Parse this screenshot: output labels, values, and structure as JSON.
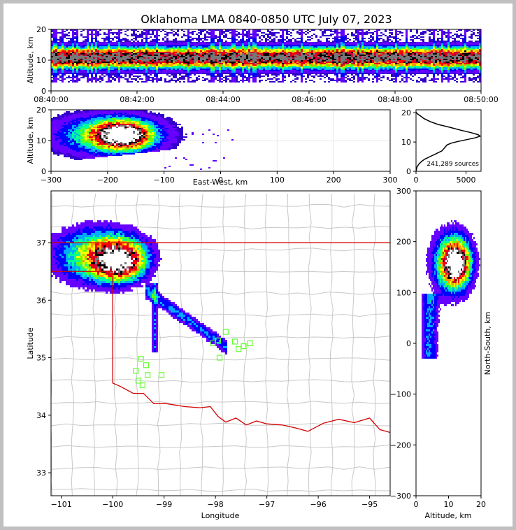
{
  "title": "Oklahoma LMA 0840-0850 UTC July 07, 2023",
  "colors": {
    "density": [
      "#3300cc",
      "#6600ff",
      "#0000ff",
      "#00aaff",
      "#00ff99",
      "#66ff00",
      "#ffff00",
      "#ff9900",
      "#ff0000",
      "#cc0033",
      "#000000",
      "#777777",
      "#ffffff"
    ],
    "border": "#d40000",
    "county": "#c8c8c8",
    "station": "#66ff33"
  },
  "chart_data": [
    {
      "type": "heatmap",
      "panel": "altitude-time",
      "ylabel": "Altitude, km",
      "x_ticks": [
        "08:40:00",
        "08:42:00",
        "08:44:00",
        "08:46:00",
        "08:48:00",
        "08:50:00"
      ],
      "xlim": [
        "08:40:00",
        "08:50:00"
      ],
      "y_ticks": [
        "0",
        "10",
        "20"
      ],
      "ylim": [
        0,
        20
      ]
    },
    {
      "type": "heatmap",
      "panel": "altitude-eastwest",
      "xlabel": "East-West, km",
      "ylabel": "Altitude, km",
      "x_ticks": [
        "−300",
        "−200",
        "−100",
        "0",
        "100",
        "200",
        "300"
      ],
      "xlim": [
        -300,
        300
      ],
      "y_ticks": [
        "0",
        "10",
        "20"
      ],
      "ylim": [
        0,
        20
      ]
    },
    {
      "type": "line",
      "panel": "altitude-histogram",
      "annotation": "241,289 sources",
      "x_ticks": [
        "0",
        "5000"
      ],
      "xlim": [
        0,
        6500
      ],
      "y_ticks": [
        "0",
        "10",
        "20"
      ],
      "ylim": [
        0,
        21
      ],
      "x": [
        0,
        100,
        300,
        600,
        900,
        1400,
        2000,
        2600,
        2900,
        3100,
        3500,
        4200,
        5200,
        6000,
        6400,
        6200,
        5500,
        4500,
        3400,
        2200,
        1400,
        800,
        400,
        150,
        40,
        0
      ],
      "y": [
        0,
        1.5,
        2.5,
        3.5,
        4.2,
        5.0,
        6.0,
        7.0,
        8.2,
        9.0,
        9.6,
        10.2,
        10.9,
        11.5,
        12.0,
        12.5,
        13.2,
        14.0,
        15.0,
        16.0,
        17.0,
        18.0,
        19.0,
        19.6,
        20.0,
        20.2
      ]
    },
    {
      "type": "heatmap",
      "panel": "plan-view",
      "xlabel": "Longitude",
      "ylabel": "Latitude",
      "x_ticks": [
        "−101",
        "−100",
        "−99",
        "−98",
        "−97",
        "−96",
        "−95"
      ],
      "xlim": [
        -101.2,
        -94.6
      ],
      "y_ticks": [
        "33",
        "34",
        "35",
        "36",
        "37"
      ],
      "ylim": [
        32.6,
        37.9
      ],
      "stations": [
        [
          -99.45,
          34.98
        ],
        [
          -99.35,
          34.87
        ],
        [
          -99.55,
          34.77
        ],
        [
          -99.32,
          34.7
        ],
        [
          -99.05,
          34.7
        ],
        [
          -99.5,
          34.6
        ],
        [
          -99.42,
          34.52
        ],
        [
          -97.8,
          35.45
        ],
        [
          -98.05,
          35.25
        ],
        [
          -97.95,
          35.3
        ],
        [
          -97.62,
          35.28
        ],
        [
          -97.55,
          35.15
        ],
        [
          -97.45,
          35.2
        ],
        [
          -97.33,
          35.25
        ],
        [
          -97.92,
          35.0
        ]
      ]
    },
    {
      "type": "heatmap",
      "panel": "northsouth-altitude",
      "xlabel": "Altitude, km",
      "ylabel": "North-South, km",
      "x_ticks": [
        "0",
        "10",
        "20"
      ],
      "xlim": [
        0,
        20
      ],
      "y_ticks": [
        "−300",
        "−200",
        "−100",
        "0",
        "100",
        "200",
        "300"
      ],
      "ylim": [
        -300,
        300
      ]
    }
  ]
}
